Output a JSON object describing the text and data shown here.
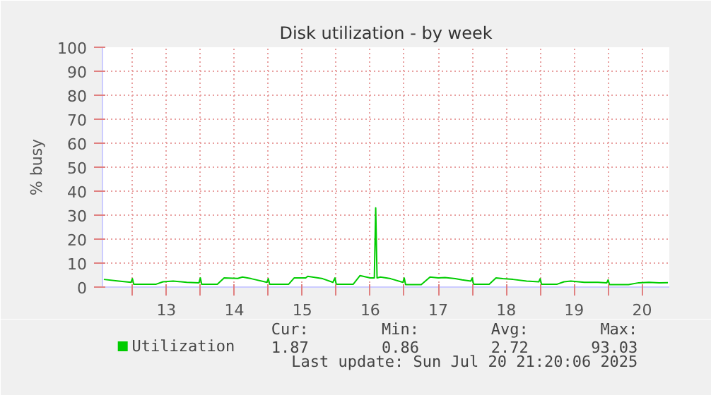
{
  "chart_data": {
    "type": "line",
    "title": "Disk utilization - by week",
    "ylabel": "% busy",
    "x": [
      12.58,
      12.8,
      12.98,
      13.0,
      13.02,
      13.35,
      13.45,
      13.6,
      13.8,
      13.98,
      14.0,
      14.02,
      14.25,
      14.35,
      14.55,
      14.62,
      14.75,
      14.98,
      15.0,
      15.02,
      15.3,
      15.38,
      15.55,
      15.58,
      15.8,
      15.95,
      15.98,
      16.0,
      16.25,
      16.35,
      16.5,
      16.56,
      16.58,
      16.6,
      16.65,
      16.8,
      16.98,
      17.0,
      17.02,
      17.25,
      17.38,
      17.5,
      17.6,
      17.75,
      17.85,
      17.98,
      18.0,
      18.02,
      18.25,
      18.35,
      18.45,
      18.6,
      18.8,
      18.98,
      19.0,
      19.02,
      19.25,
      19.35,
      19.45,
      19.65,
      19.85,
      19.98,
      20.0,
      20.02,
      20.3,
      20.45,
      20.6,
      20.75,
      20.88
    ],
    "series": [
      {
        "name": "Utilization",
        "color": "#00cc00",
        "values": [
          3.2,
          2.5,
          2.0,
          3.5,
          1.2,
          1.2,
          2.2,
          2.5,
          2.0,
          1.8,
          3.8,
          1.2,
          1.2,
          3.8,
          3.6,
          4.2,
          3.5,
          2.0,
          3.5,
          1.2,
          1.2,
          3.8,
          3.8,
          4.5,
          3.5,
          2.0,
          3.8,
          1.2,
          1.2,
          4.8,
          3.8,
          3.8,
          33,
          3.8,
          4.2,
          3.5,
          2.0,
          3.8,
          1.0,
          1.0,
          4.2,
          3.8,
          4.0,
          3.5,
          3.0,
          2.5,
          3.8,
          1.2,
          1.2,
          3.8,
          3.5,
          3.2,
          2.5,
          2.2,
          3.5,
          1.2,
          1.2,
          2.2,
          2.5,
          2.0,
          2.0,
          1.8,
          3.0,
          1.0,
          1.0,
          1.8,
          2.0,
          1.8,
          1.87
        ]
      }
    ],
    "xlim": [
      12.56,
      20.9
    ],
    "ylim": [
      0,
      100
    ],
    "xticks": [
      {
        "value": 13,
        "label": null
      },
      {
        "value": 13.5,
        "label": "13"
      },
      {
        "value": 14,
        "label": null
      },
      {
        "value": 14.5,
        "label": "14"
      },
      {
        "value": 15,
        "label": null
      },
      {
        "value": 15.5,
        "label": "15"
      },
      {
        "value": 16,
        "label": null
      },
      {
        "value": 16.5,
        "label": "16"
      },
      {
        "value": 17,
        "label": null
      },
      {
        "value": 17.5,
        "label": "17"
      },
      {
        "value": 18,
        "label": null
      },
      {
        "value": 18.5,
        "label": "18"
      },
      {
        "value": 19,
        "label": null
      },
      {
        "value": 19.5,
        "label": "19"
      },
      {
        "value": 20,
        "label": null
      },
      {
        "value": 20.5,
        "label": "20"
      }
    ],
    "yticks": [
      0,
      10,
      20,
      30,
      40,
      50,
      60,
      70,
      80,
      90,
      100
    ],
    "grid": true,
    "legend": "bottom",
    "marker": "none",
    "line_style": "solid",
    "annotations": [
      "Cur:",
      "Min:",
      "Avg:",
      "Max:",
      "1.87",
      "0.86",
      "2.72",
      "93.03",
      "Last update: Sun Jul 20 21:20:06 2025"
    ]
  }
}
